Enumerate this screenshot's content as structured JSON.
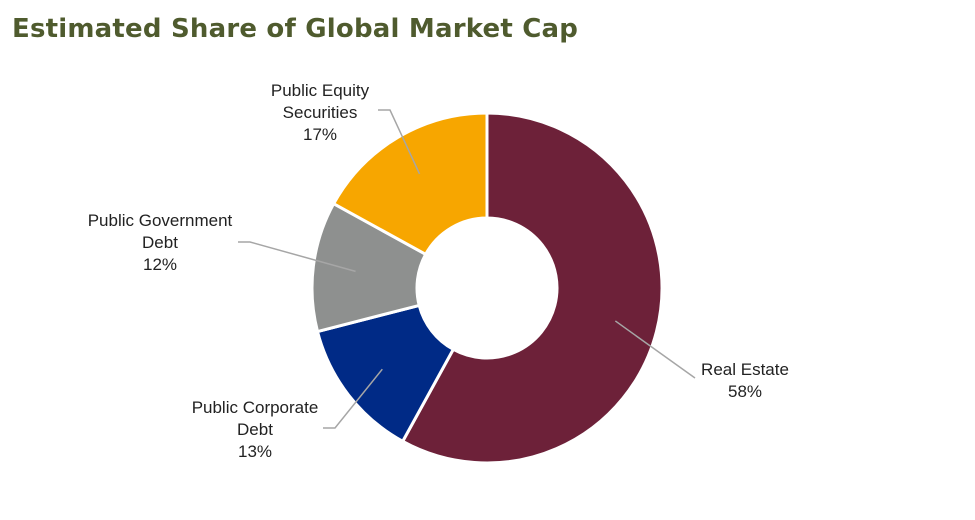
{
  "chart_data": {
    "type": "pie",
    "title": "Estimated Share of Global Market Cap",
    "slices": [
      {
        "label": [
          "Real Estate"
        ],
        "value": 58,
        "value_label": "58%",
        "color": "#6d2139"
      },
      {
        "label": [
          "Public Corporate",
          "Debt"
        ],
        "value": 13,
        "value_label": "13%",
        "color": "#002a86"
      },
      {
        "label": [
          "Public Government",
          "Debt"
        ],
        "value": 12,
        "value_label": "12%",
        "color": "#8e908f"
      },
      {
        "label": [
          "Public Equity",
          "Securities"
        ],
        "value": 17,
        "value_label": "17%",
        "color": "#f7a600"
      }
    ]
  }
}
